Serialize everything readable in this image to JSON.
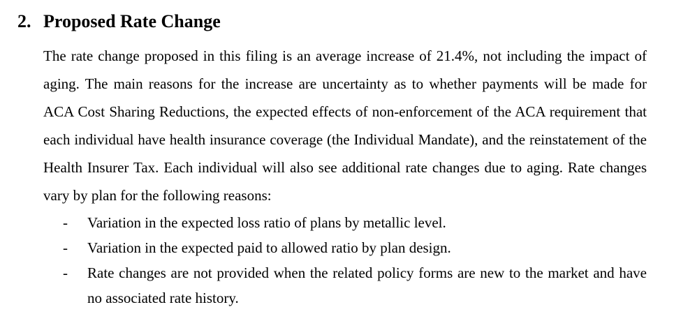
{
  "page": {
    "background_color": "#ffffff",
    "text_color": "#000000"
  },
  "section": {
    "number": "2.",
    "title": "Proposed Rate Change"
  },
  "paragraph": "The rate change proposed in this filing is an average increase of 21.4%, not including the impact of aging.  The main reasons for the increase are uncertainty as to whether payments will be made for ACA Cost Sharing Reductions, the expected effects of non-enforcement of the ACA requirement that each individual have health insurance coverage (the Individual Mandate), and the reinstatement of the Health Insurer Tax.  Each individual will also see additional rate changes due to aging. Rate changes vary by plan for the following reasons:",
  "bullets": [
    {
      "marker": "-",
      "text": "Variation in the expected loss ratio of plans by metallic level."
    },
    {
      "marker": "-",
      "text": "Variation in the expected paid to allowed ratio by plan design."
    },
    {
      "marker": "-",
      "text": "Rate changes are not provided when the related policy forms are new to the market and have no associated rate history."
    }
  ]
}
